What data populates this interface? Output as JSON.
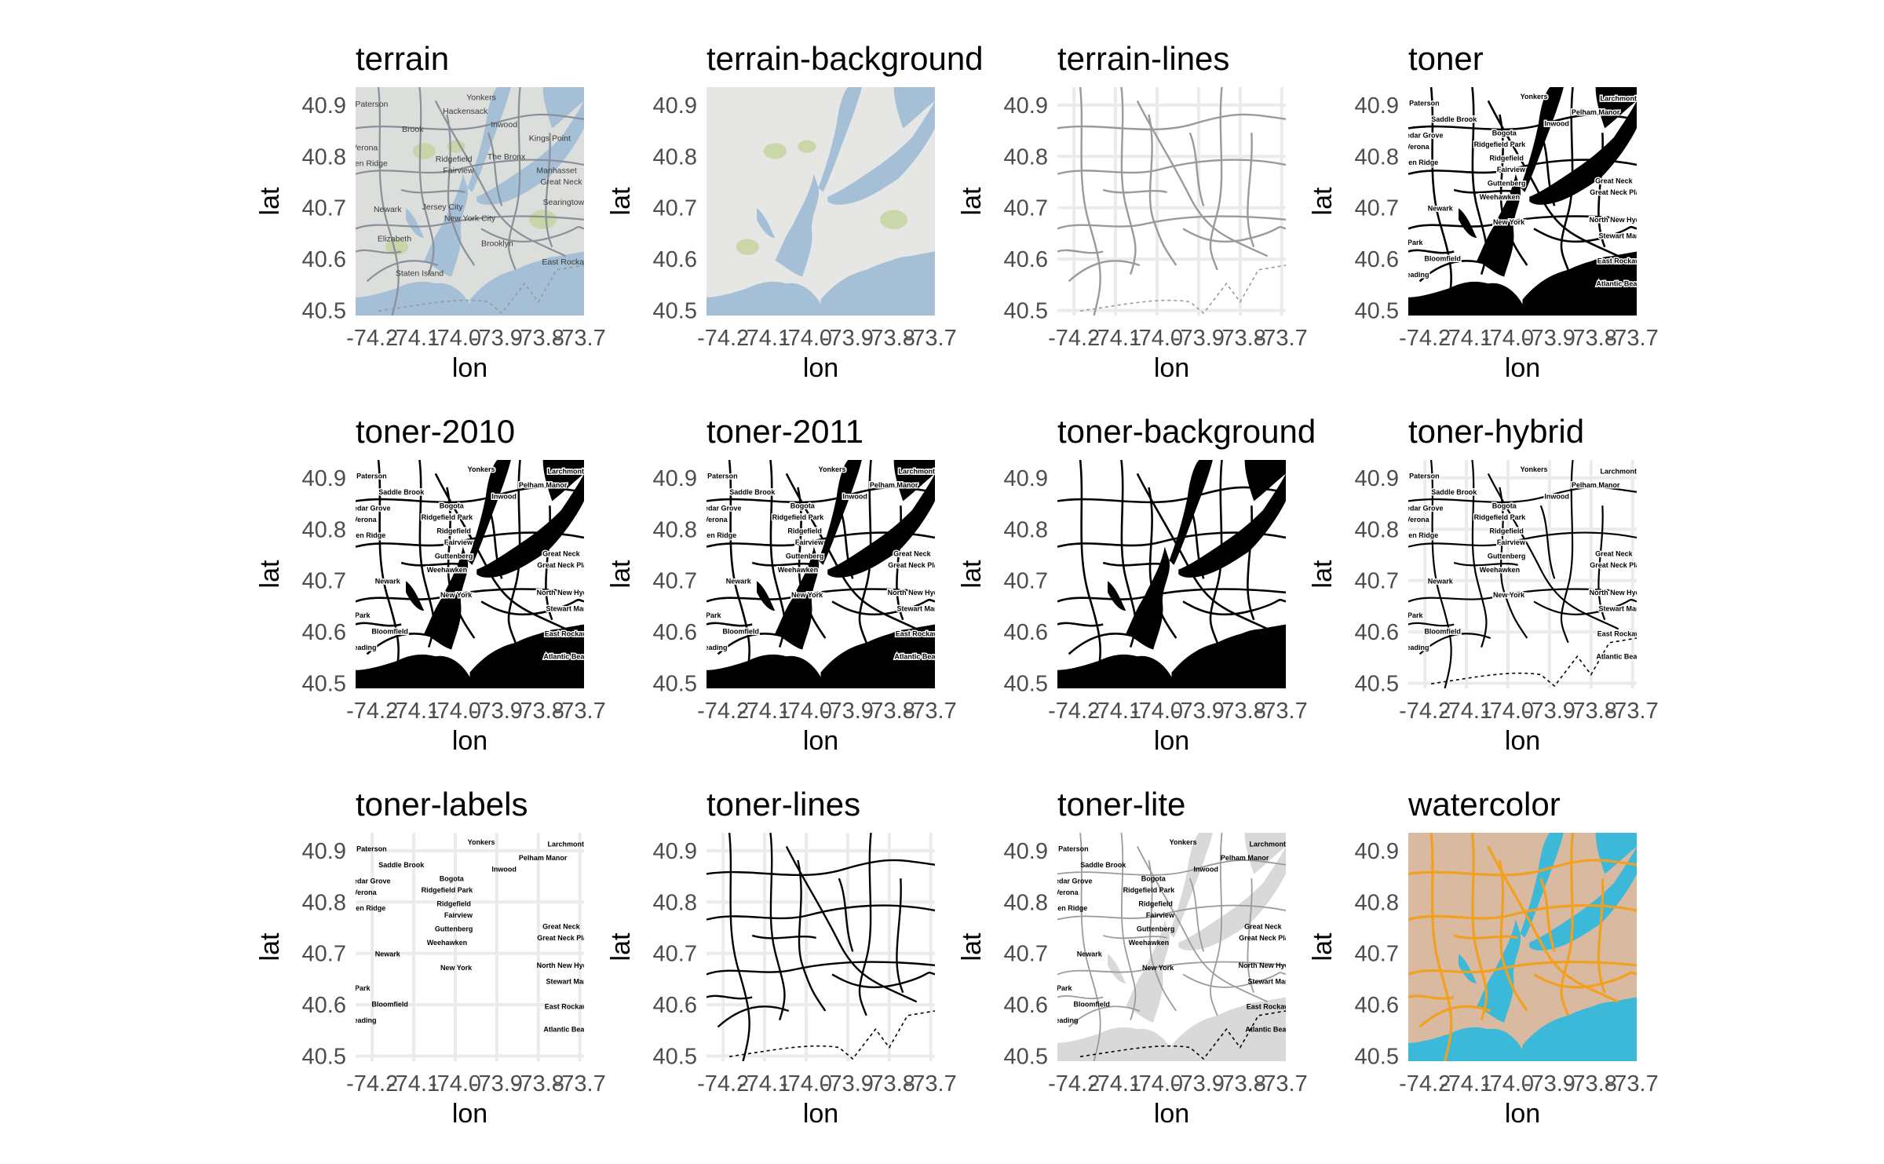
{
  "axes": {
    "x_title": "lon",
    "y_title": "lat",
    "x_ticks": [
      "-74.2",
      "-74.1",
      "-74.0",
      "-73.9",
      "-73.8",
      "-73.7"
    ],
    "y_ticks": [
      "40.9",
      "40.8",
      "40.7",
      "40.6",
      "40.5"
    ],
    "x_tick_values": [
      -74.2,
      -74.1,
      -74.0,
      -73.9,
      -73.8,
      -73.7
    ],
    "y_tick_values": [
      40.9,
      40.8,
      40.7,
      40.6,
      40.5
    ],
    "lon_range": [
      -74.24,
      -73.69
    ],
    "lat_range": [
      40.49,
      40.935
    ]
  },
  "panels": [
    {
      "title": "terrain",
      "style": "terrain",
      "labels": [
        "Paterson",
        "Yonkers",
        "Hackensack",
        "Inwood",
        "Kings Point",
        "Brook",
        "The Bronx",
        "Verona",
        "Ridgefield",
        "Manhasset",
        "Fairview",
        "Great Neck",
        "Glen Ridge",
        "Newark",
        "Jersey City",
        "New York City",
        "Searingtown",
        "Elizabeth",
        "Brooklyn",
        "Staten Island",
        "East Rockaway"
      ]
    },
    {
      "title": "terrain-background",
      "style": "terrain-background",
      "labels": []
    },
    {
      "title": "terrain-lines",
      "style": "terrain-lines",
      "labels": []
    },
    {
      "title": "toner",
      "style": "toner",
      "labels": [
        "Paterson",
        "Yonkers",
        "Larchmont",
        "Saddle Brook",
        "Pelham Manor",
        "Cedar Grove",
        "Bogota",
        "Verona",
        "Ridgefield Park",
        "Ridgefield",
        "Glen Ridge",
        "Fairview",
        "Great Neck",
        "Guttenberg",
        "Great Neck Plaza",
        "Weehawken",
        "Newark",
        "North New Hyde Park",
        "New York",
        "Stewart Manor",
        "Park",
        "East Rockaway",
        "Bloomfield",
        "Inwood",
        "Reading",
        "Atlantic Beach"
      ]
    },
    {
      "title": "toner-2010",
      "style": "toner",
      "labels": [
        "Paterson",
        "Yonkers",
        "Larchmont",
        "Saddle Brook",
        "Pelham Manor",
        "Cedar Grove",
        "Bogota",
        "Verona",
        "Ridgefield Park",
        "Ridgefield",
        "Glen Ridge",
        "Fairview",
        "Great Neck",
        "Guttenberg",
        "Great Neck Plaza",
        "Weehawken",
        "Newark",
        "North New Hyde Park",
        "New York",
        "Stewart Manor",
        "Park",
        "East Rockaway",
        "Bloomfield",
        "Inwood",
        "Reading",
        "Atlantic Beach"
      ]
    },
    {
      "title": "toner-2011",
      "style": "toner",
      "labels": [
        "Paterson",
        "Yonkers",
        "Larchmont",
        "Saddle Brook",
        "Pelham Manor",
        "Cedar Grove",
        "Bogota",
        "Verona",
        "Ridgefield Park",
        "Ridgefield",
        "Glen Ridge",
        "Fairview",
        "Great Neck",
        "Guttenberg",
        "Great Neck Plaza",
        "Weehawken",
        "Newark",
        "North New Hyde Park",
        "New York",
        "Stewart Manor",
        "Park",
        "East Rockaway",
        "Bloomfield",
        "Inwood",
        "Reading",
        "Atlantic Beach"
      ]
    },
    {
      "title": "toner-background",
      "style": "toner-background",
      "labels": []
    },
    {
      "title": "toner-hybrid",
      "style": "toner-hybrid",
      "labels": [
        "Paterson",
        "Yonkers",
        "Larchmont",
        "Saddle Brook",
        "Pelham Manor",
        "Cedar Grove",
        "Bogota",
        "Verona",
        "Ridgefield Park",
        "Ridgefield",
        "Glen Ridge",
        "Fairview",
        "Great Neck",
        "Guttenberg",
        "Great Neck Plaza",
        "Weehawken",
        "Newark",
        "North New Hyde Park",
        "New York",
        "Stewart Manor",
        "Park",
        "East Rockaway",
        "Bloomfield",
        "Inwood",
        "Reading",
        "Atlantic Beach"
      ]
    },
    {
      "title": "toner-labels",
      "style": "toner-labels",
      "labels": [
        "Paterson",
        "Yonkers",
        "Larchmont",
        "Saddle Brook",
        "Pelham Manor",
        "Cedar Grove",
        "Bogota",
        "Verona",
        "Ridgefield Park",
        "Ridgefield",
        "Glen Ridge",
        "Fairview",
        "Great Neck",
        "Guttenberg",
        "Great Neck Plaza",
        "Weehawken",
        "Newark",
        "North New Hyde Park",
        "New York",
        "Stewart Manor",
        "Park",
        "East Rockaway",
        "Bloomfield",
        "Inwood",
        "Reading",
        "Atlantic Beach"
      ]
    },
    {
      "title": "toner-lines",
      "style": "toner-lines",
      "labels": []
    },
    {
      "title": "toner-lite",
      "style": "toner-lite",
      "labels": [
        "Paterson",
        "Yonkers",
        "Larchmont",
        "Saddle Brook",
        "Pelham Manor",
        "Cedar Grove",
        "Bogota",
        "Verona",
        "Ridgefield Park",
        "Ridgefield",
        "Glen Ridge",
        "Fairview",
        "Great Neck",
        "Guttenberg",
        "Great Neck Plaza",
        "Weehawken",
        "Newark",
        "North New Hyde Park",
        "New York",
        "Stewart Manor",
        "Park",
        "East Rockaway",
        "Bloomfield",
        "Inwood",
        "Reading",
        "Atlantic Beach"
      ]
    },
    {
      "title": "watercolor",
      "style": "watercolor",
      "labels": []
    }
  ],
  "colors": {
    "terrain_land": "#dcdedb",
    "terrain_water": "#a4bfd6",
    "terrain_park": "#c3d39a",
    "toner_ink": "#000000",
    "grid": "#ebebeb",
    "lite_water": "#d9d9d9",
    "watercolor_land": "#d9b9a0",
    "watercolor_water": "#3cb9d8",
    "watercolor_road": "#f2a01f"
  }
}
